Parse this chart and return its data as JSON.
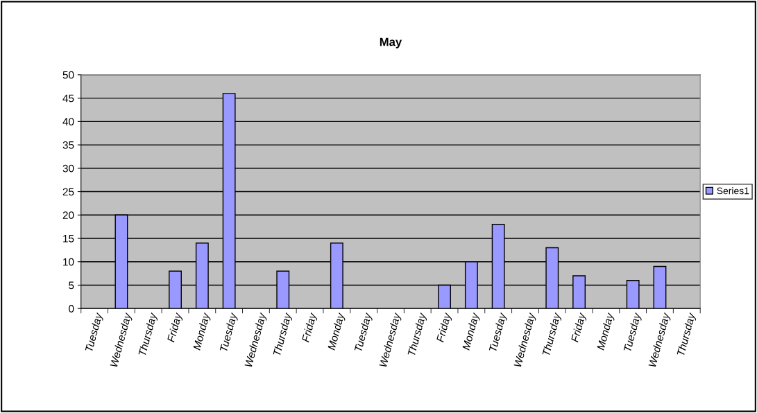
{
  "chart_data": {
    "type": "bar",
    "title": "May",
    "categories": [
      "Tuesday",
      "Wednesday",
      "Thursday",
      "Friday",
      "Monday",
      "Tuesday",
      "Wednesday",
      "Thursday",
      "Friday",
      "Monday",
      "Tuesday",
      "Wednesday",
      "Thursday",
      "Friday",
      "Monday",
      "Tuesday",
      "Wednesday",
      "Thursday",
      "Friday",
      "Monday",
      "Tuesday",
      "Wednesday",
      "Thursday"
    ],
    "series": [
      {
        "name": "Series1",
        "color": "#9999ff",
        "values": [
          null,
          20,
          null,
          8,
          14,
          46,
          null,
          8,
          null,
          14,
          null,
          null,
          null,
          5,
          10,
          18,
          null,
          13,
          7,
          null,
          6,
          9,
          null
        ]
      }
    ],
    "ylim": [
      0,
      50
    ],
    "yticks": [
      0,
      5,
      10,
      15,
      20,
      25,
      30,
      35,
      40,
      45,
      50
    ],
    "grid": "y",
    "legend": "right"
  }
}
